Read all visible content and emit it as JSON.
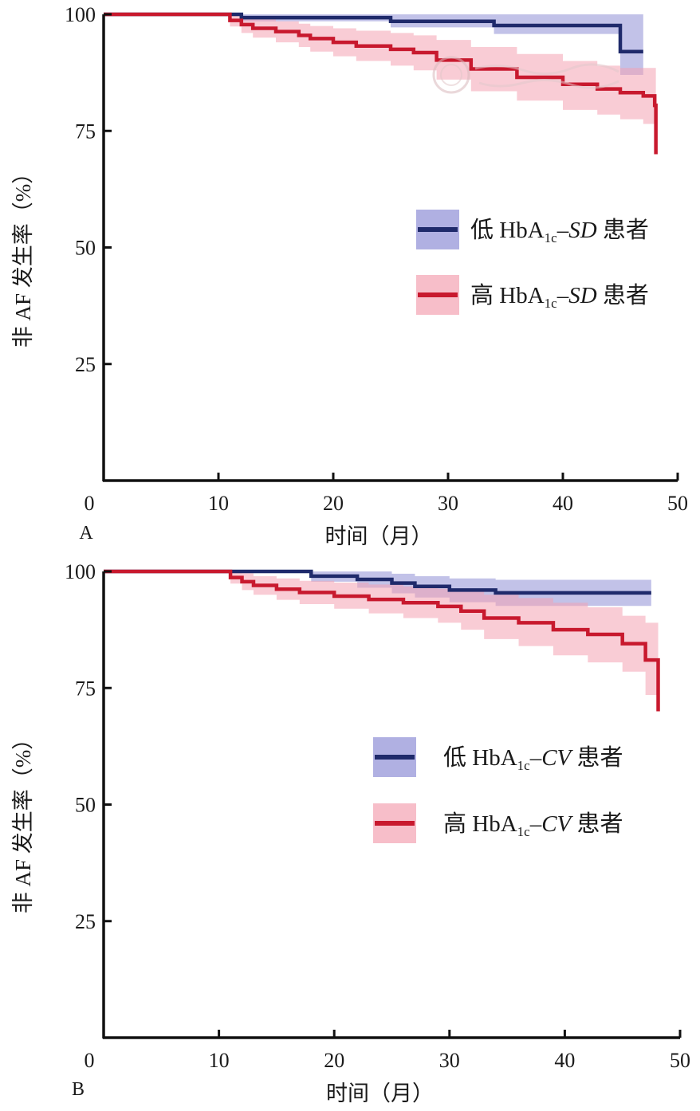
{
  "chart_data": [
    {
      "panel_label": "A",
      "type": "line",
      "subtype": "kaplan-meier-step",
      "xlabel": "时间（月）",
      "ylabel": "非 AF 发生率（%）",
      "xlim": [
        0,
        50
      ],
      "ylim": [
        0,
        100
      ],
      "xticks": [
        0,
        10,
        20,
        30,
        40,
        50
      ],
      "yticks": [
        25,
        50,
        75,
        100
      ],
      "grid": false,
      "legend_position": "right-middle",
      "series": [
        {
          "name": "低 HbA1c-SD 患者",
          "color": "#1f2a6b",
          "band_color": "#8f8fd6",
          "x": [
            0,
            12,
            25,
            34,
            45,
            47
          ],
          "y": [
            100,
            99.3,
            98.5,
            97.6,
            92,
            92
          ],
          "ci_upper": [
            100,
            100,
            100,
            100,
            100,
            100
          ],
          "ci_lower": [
            100,
            98.5,
            97.2,
            95.8,
            87,
            87
          ]
        },
        {
          "name": "高 HbA1c-SD 患者",
          "color": "#c8192e",
          "band_color": "#f4a3b2",
          "x": [
            0,
            11,
            12,
            13,
            15,
            17,
            18,
            20,
            22,
            25,
            27,
            29,
            32,
            36,
            40,
            43,
            45,
            47,
            48,
            48.1
          ],
          "y": [
            100,
            98.7,
            97.8,
            97.0,
            96.3,
            95.5,
            94.8,
            94.0,
            93.2,
            92.5,
            91.8,
            90.2,
            88.3,
            86.5,
            85.0,
            84.0,
            83.2,
            82.5,
            80.5,
            70.0
          ],
          "ci_upper": [
            100,
            100,
            99.6,
            99.0,
            98.5,
            98.0,
            97.5,
            97.0,
            96.5,
            96.0,
            95.5,
            94.5,
            93.0,
            91.5,
            90.0,
            89.0,
            88.5,
            88.5,
            88.5,
            88.0
          ],
          "ci_lower": [
            100,
            97.4,
            96.0,
            95.0,
            94.0,
            93.0,
            92.0,
            91.0,
            90.0,
            89.0,
            88.0,
            86.0,
            83.5,
            81.5,
            79.5,
            78.5,
            77.5,
            76.5,
            74.5,
            70.0
          ]
        }
      ],
      "legend": [
        {
          "prefix": "低 HbA",
          "sub": "1c",
          "dash": "–",
          "italic": "SD",
          "suffix": " 患者"
        },
        {
          "prefix": "高 HbA",
          "sub": "1c",
          "dash": "–",
          "italic": "SD",
          "suffix": " 患者"
        }
      ]
    },
    {
      "panel_label": "B",
      "type": "line",
      "subtype": "kaplan-meier-step",
      "xlabel": "时间（月）",
      "ylabel": "非 AF 发生率（%）",
      "xlim": [
        0,
        50
      ],
      "ylim": [
        0,
        100
      ],
      "xticks": [
        0,
        10,
        20,
        30,
        40,
        50
      ],
      "yticks": [
        25,
        50,
        75,
        100
      ],
      "grid": false,
      "legend_position": "right-middle",
      "series": [
        {
          "name": "低 HbA1c-CV 患者",
          "color": "#1f2a6b",
          "band_color": "#8f8fd6",
          "x": [
            0,
            18,
            22,
            25,
            27,
            30,
            34,
            47.5
          ],
          "y": [
            100,
            99.0,
            98.3,
            97.5,
            96.8,
            96.0,
            95.4,
            95.4
          ],
          "ci_upper": [
            100,
            100,
            100,
            99.5,
            99.0,
            98.5,
            98.2,
            98.2
          ],
          "ci_lower": [
            100,
            97.8,
            96.5,
            95.3,
            94.4,
            93.4,
            92.6,
            92.6
          ]
        },
        {
          "name": "高 HbA1c-CV 患者",
          "color": "#c8192e",
          "band_color": "#f4a3b2",
          "x": [
            0,
            11,
            12,
            13,
            15,
            17,
            20,
            23,
            26,
            29,
            31,
            33,
            36,
            39,
            42,
            45,
            47,
            48,
            48.1
          ],
          "y": [
            100,
            98.7,
            97.8,
            97.0,
            96.2,
            95.5,
            94.7,
            94.0,
            93.3,
            92.5,
            91.5,
            90.0,
            89.0,
            87.5,
            86.5,
            84.5,
            81.0,
            81.0,
            70.0
          ],
          "ci_upper": [
            100,
            100,
            99.6,
            99.0,
            98.5,
            98.0,
            97.6,
            97.2,
            96.8,
            96.3,
            95.8,
            95.0,
            94.3,
            93.3,
            92.3,
            90.5,
            89.0,
            89.0,
            89.0
          ],
          "ci_lower": [
            100,
            97.4,
            96.0,
            95.0,
            93.9,
            93.0,
            92.0,
            91.0,
            90.0,
            89.0,
            87.5,
            85.5,
            84.0,
            82.0,
            80.5,
            78.5,
            73.5,
            73.5,
            70.0
          ]
        }
      ],
      "legend": [
        {
          "prefix": "低 HbA",
          "sub": "1c",
          "dash": "–",
          "italic": "CV",
          "suffix": " 患者"
        },
        {
          "prefix": "高 HbA",
          "sub": "1c",
          "dash": "–",
          "italic": "CV",
          "suffix": " 患者"
        }
      ]
    }
  ]
}
